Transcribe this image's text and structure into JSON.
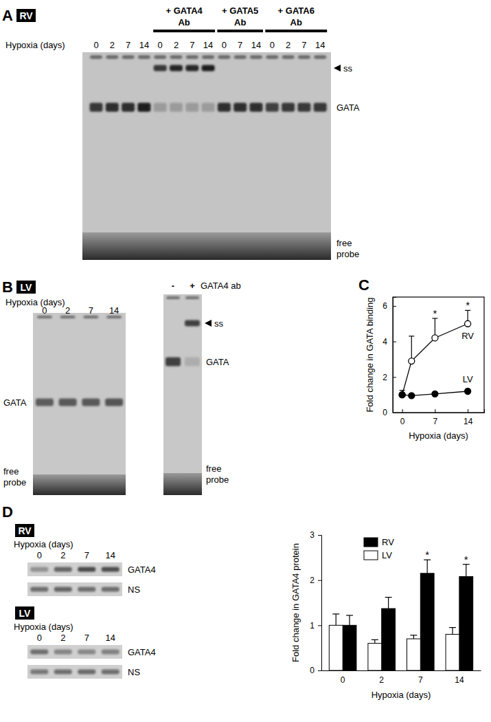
{
  "panels": {
    "A": {
      "letter": "A",
      "tissue": "RV",
      "lane_axis_label": "Hypoxia (days)",
      "groups": [
        {
          "lanes": [
            0,
            2,
            7,
            14
          ]
        },
        {
          "label": [
            "+ GATA4",
            "Ab"
          ],
          "lanes": [
            0,
            2,
            7,
            14
          ]
        },
        {
          "label": [
            "+ GATA5",
            "Ab"
          ],
          "lanes": [
            0,
            7,
            14
          ]
        },
        {
          "label": [
            "+ GATA6",
            "Ab"
          ],
          "lanes": [
            0,
            2,
            7,
            14
          ]
        }
      ],
      "band_labels": {
        "ss": "ss",
        "gata": "GATA",
        "free_probe": [
          "free",
          "probe"
        ]
      }
    },
    "B": {
      "letter": "B",
      "tissue": "LV",
      "lane_axis_label": "Hypoxia (days)",
      "lanes": [
        0,
        2,
        7,
        14
      ],
      "band_labels": {
        "gata": "GATA",
        "free_probe": [
          "free",
          "probe"
        ]
      },
      "supershift": {
        "lanes": [
          "-",
          "+"
        ],
        "antibody": "GATA4 ab",
        "band_labels": {
          "ss": "ss",
          "gata": "GATA",
          "free_probe": [
            "free",
            "probe"
          ]
        }
      }
    },
    "D": {
      "letter": "D",
      "blots": [
        {
          "tissue": "RV",
          "lane_axis_label": "Hypoxia (days)",
          "lanes": [
            0,
            2,
            7,
            14
          ],
          "rows": [
            "GATA4",
            "NS"
          ]
        },
        {
          "tissue": "LV",
          "lane_axis_label": "Hypoxia (days)",
          "lanes": [
            0,
            2,
            7,
            14
          ],
          "rows": [
            "GATA4",
            "NS"
          ]
        }
      ]
    }
  },
  "chart_data": [
    {
      "type": "line",
      "panel_label": "C",
      "x_label": "Hypoxia (days)",
      "y_label": "Fold change in GATA binding",
      "xlim": [
        -2,
        17.5
      ],
      "ylim": [
        0,
        6.5
      ],
      "xticks": [
        0,
        7,
        14
      ],
      "yticks": [
        0,
        2,
        4,
        6
      ],
      "x": [
        0,
        2,
        7,
        14
      ],
      "series": [
        {
          "name": "RV",
          "color": "#000000",
          "marker": "open-circle",
          "values": [
            1,
            2.9,
            4.2,
            5.0
          ],
          "errors": [
            0.25,
            1.4,
            1.1,
            0.75
          ]
        },
        {
          "name": "LV",
          "color": "#000000",
          "marker": "circle",
          "values": [
            1,
            0.95,
            1.05,
            1.2
          ],
          "errors": [
            0.1,
            0.08,
            0.08,
            0.1
          ]
        }
      ],
      "annotations": [
        {
          "text": "*",
          "x": 7,
          "series": "RV"
        },
        {
          "text": "*",
          "x": 14,
          "series": "RV"
        }
      ]
    },
    {
      "type": "bar",
      "x_label": "Hypoxia (days)",
      "y_label": "Fold change in GATA4 protein",
      "categories": [
        "0",
        "2",
        "7",
        "14"
      ],
      "ylim": [
        0,
        3
      ],
      "yticks": [
        0,
        1,
        2,
        3
      ],
      "legend": "upper left",
      "series": [
        {
          "name": "RV",
          "color": "#000000",
          "values": [
            1,
            1.37,
            2.15,
            2.08
          ],
          "errors": [
            0.22,
            0.25,
            0.3,
            0.27
          ]
        },
        {
          "name": "LV",
          "color": "#ffffff",
          "values": [
            1,
            0.6,
            0.7,
            0.8
          ],
          "errors": [
            0.25,
            0.08,
            0.08,
            0.15
          ]
        }
      ],
      "annotations": [
        {
          "text": "*",
          "category": "7",
          "series": "RV"
        },
        {
          "text": "*",
          "category": "14",
          "series": "RV"
        }
      ]
    }
  ]
}
